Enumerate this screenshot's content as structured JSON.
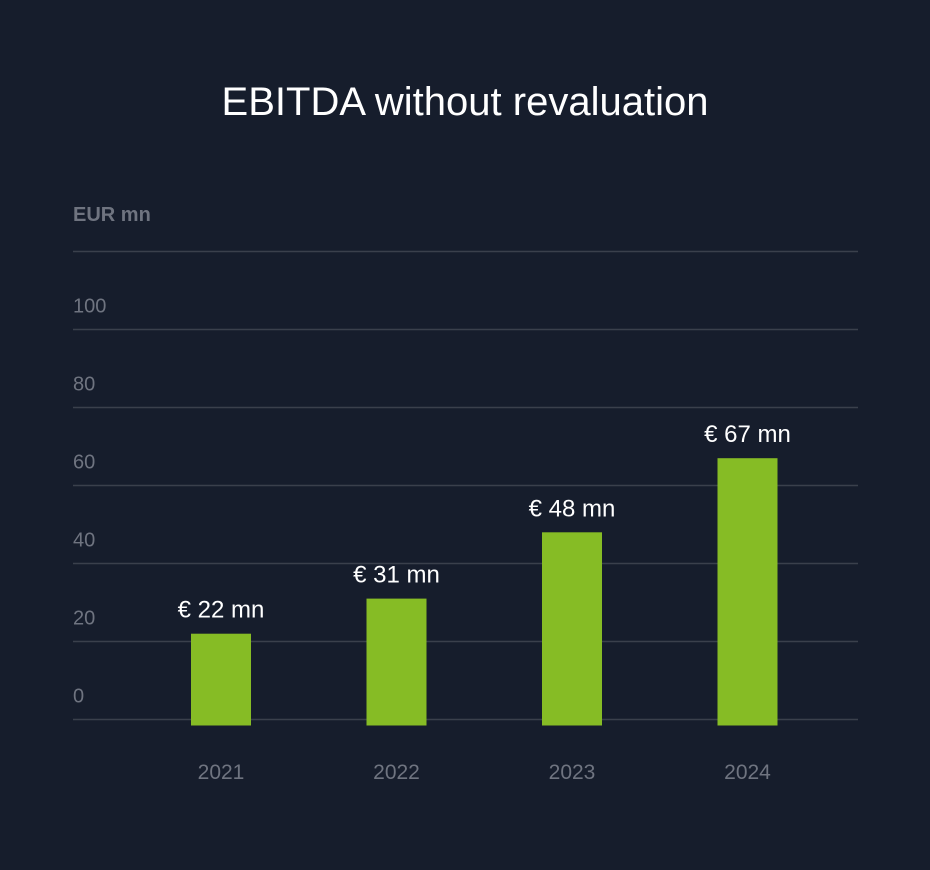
{
  "chart_data": {
    "type": "bar",
    "title": "EBITDA without revaluation",
    "ylabel": "EUR mn",
    "xlabel": "",
    "categories": [
      "2021",
      "2022",
      "2023",
      "2024"
    ],
    "values": [
      22,
      31,
      48,
      67
    ],
    "data_labels": [
      "€ 22 mn",
      "€ 31 mn",
      "€ 48 mn",
      "€ 67 mn"
    ],
    "yticks": [
      "0",
      "20",
      "40",
      "60",
      "80",
      "100"
    ],
    "ylim": [
      0,
      120
    ],
    "grid": true,
    "bar_color": "#86bc25",
    "background_color": "#161d2c"
  }
}
